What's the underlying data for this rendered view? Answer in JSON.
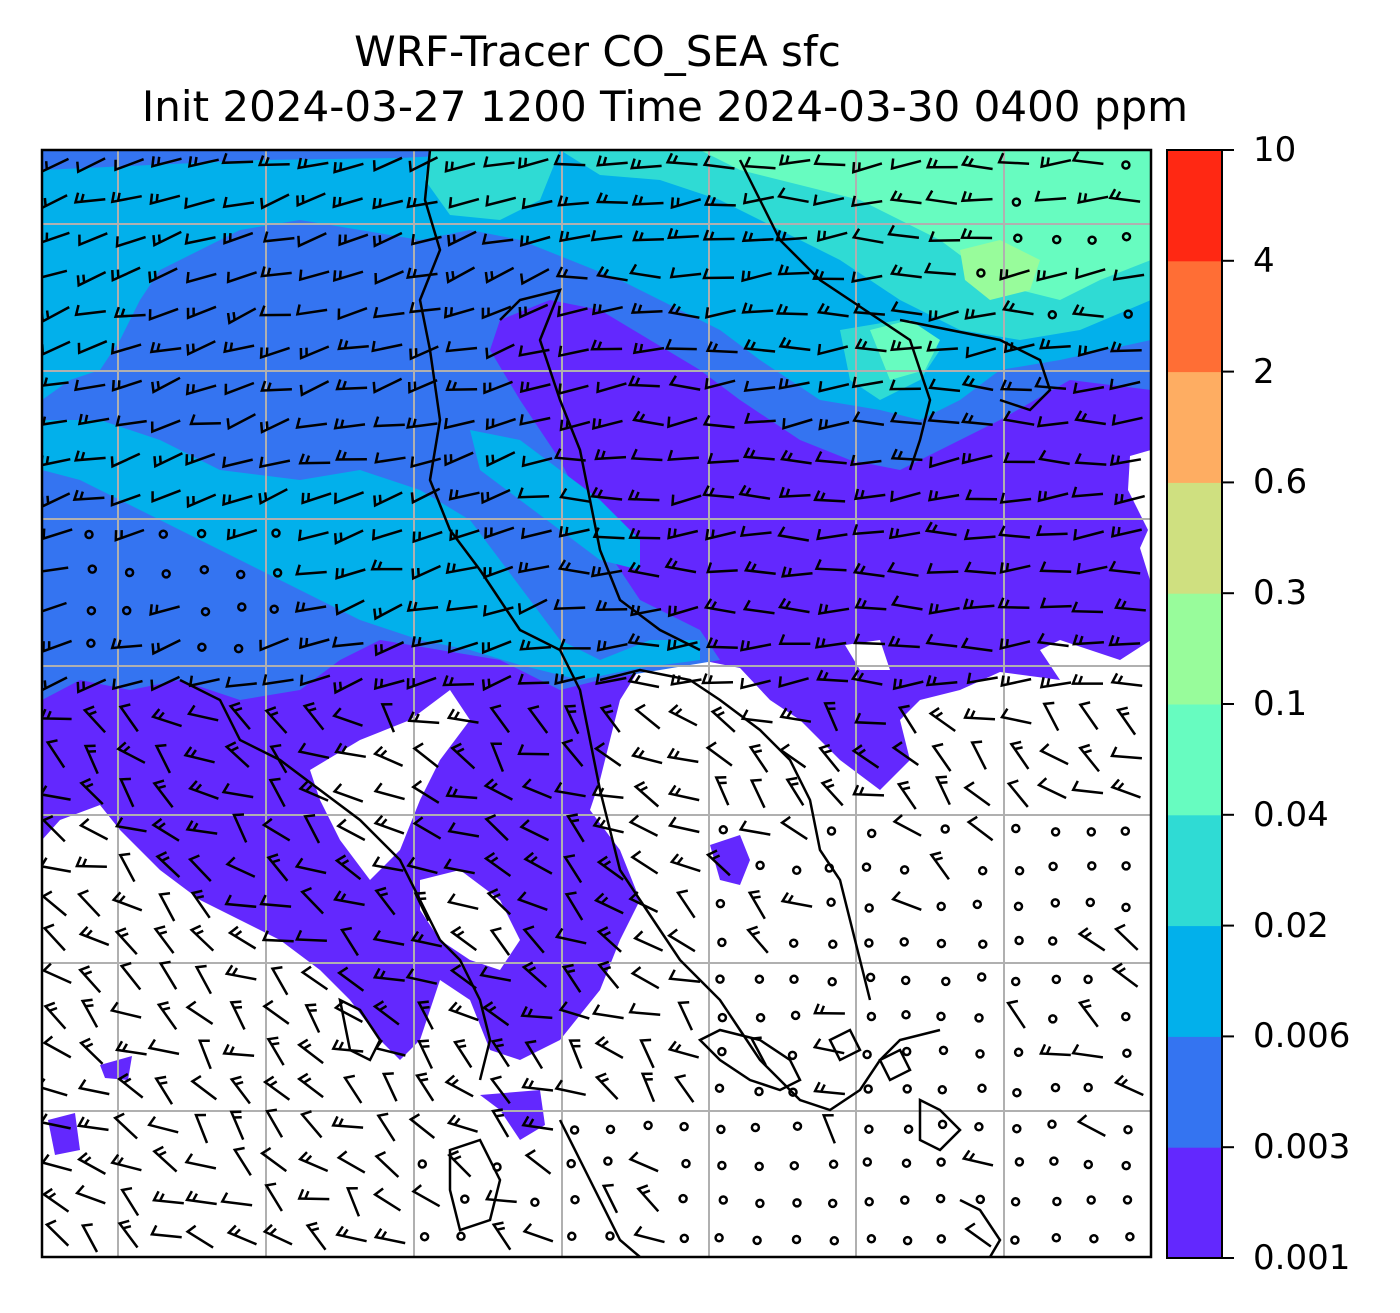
{
  "title": {
    "line1": "WRF-Tracer CO_SEA sfc",
    "line2": "Init 2024-03-27 1200 Time 2024-03-30 0400 ppm"
  },
  "colorbar": {
    "levels": [
      "0.001",
      "0.003",
      "0.006",
      "0.02",
      "0.04",
      "0.1",
      "0.3",
      "0.6",
      "2",
      "4",
      "10"
    ],
    "colors": [
      "#6328fe",
      "#3474f1",
      "#02b0eb",
      "#2fdbd4",
      "#67fcc0",
      "#98fc9b",
      "#cfe080",
      "#fead62",
      "#ff6e35",
      "#ff2813"
    ]
  },
  "map": {
    "background": "#ffffff",
    "gridline_color": "#b0b0b0",
    "wind_barb_color": "#000000"
  }
}
